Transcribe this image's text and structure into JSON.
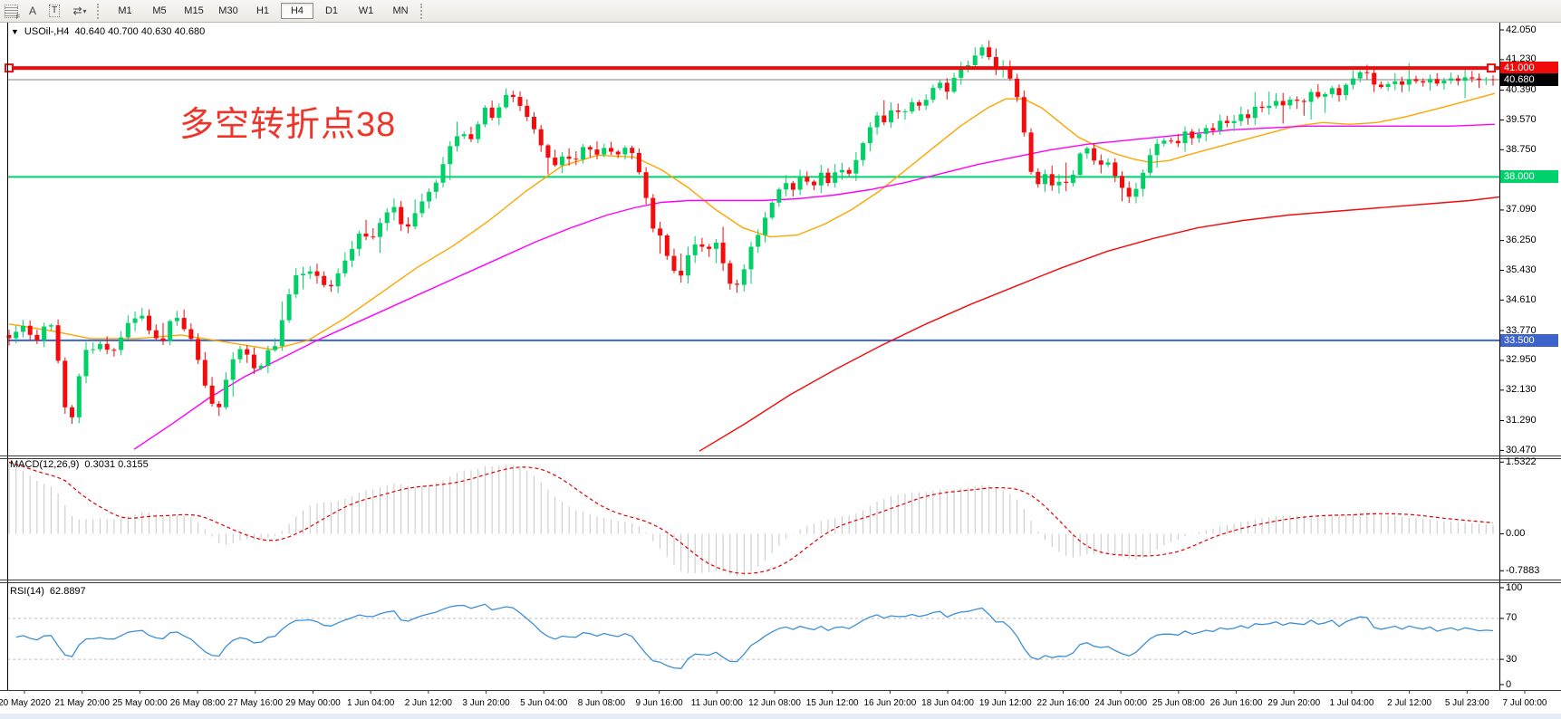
{
  "toolbar": {
    "icons": [
      {
        "name": "fibonacci-icon",
        "sub": "F"
      },
      {
        "name": "text-a-icon",
        "glyph": "A"
      },
      {
        "name": "label-t-icon",
        "glyph": "T"
      },
      {
        "name": "arrows-dropdown-icon",
        "glyph": "⇄",
        "caret": "▾"
      }
    ],
    "timeframes": [
      {
        "label": "M1",
        "active": false
      },
      {
        "label": "M5",
        "active": false
      },
      {
        "label": "M15",
        "active": false
      },
      {
        "label": "M30",
        "active": false
      },
      {
        "label": "H1",
        "active": false
      },
      {
        "label": "H4",
        "active": true
      },
      {
        "label": "D1",
        "active": false
      },
      {
        "label": "W1",
        "active": false
      },
      {
        "label": "MN",
        "active": false
      }
    ]
  },
  "header": {
    "collapse_glyph": "▼",
    "symbol_period": "USOil-,H4",
    "ohlc_text": "40.640 40.700 40.630 40.680"
  },
  "annotation": {
    "text": "多空转折点38",
    "color": "#ee352a"
  },
  "colors": {
    "candle_up": "#00d066",
    "candle_down": "#f40b0b",
    "ma_fast": "#ffa500",
    "ma_mid": "#ff00ff",
    "ma_slow": "#f40b0b",
    "hline_red": "#f10a0a",
    "hline_green": "#00d26b",
    "hline_blue": "#3c64cc",
    "price_line_gray": "#808080",
    "price_tag_black": "#000000",
    "macd_hist": "#c6c6c6",
    "macd_signal": "#e00000",
    "rsi_line": "#3d8fd8",
    "rsi_levels": "#c0c0c0"
  },
  "price_axis": {
    "ticks": [
      "42.050",
      "41.230",
      "40.390",
      "39.570",
      "38.750",
      "37.930",
      "37.090",
      "36.250",
      "35.430",
      "34.610",
      "33.770",
      "32.950",
      "32.130",
      "31.290",
      "30.470"
    ],
    "tick_values": [
      42.05,
      41.23,
      40.39,
      39.57,
      38.75,
      37.93,
      37.09,
      36.25,
      35.43,
      34.61,
      33.77,
      32.95,
      32.13,
      31.29,
      30.47
    ],
    "tags": [
      {
        "label": "41.000",
        "value": 41.0,
        "bg": "#f10a0a"
      },
      {
        "label": "40.680",
        "value": 40.68,
        "bg": "#000000"
      },
      {
        "label": "38.000",
        "value": 38.0,
        "bg": "#00d26b"
      },
      {
        "label": "33.500",
        "value": 33.5,
        "bg": "#3c64cc"
      }
    ]
  },
  "x_axis": {
    "labels": [
      "20 May 2020",
      "21 May 20:00",
      "25 May 00:00",
      "26 May 08:00",
      "27 May 16:00",
      "29 May 00:00",
      "1 Jun 04:00",
      "2 Jun 12:00",
      "3 Jun 20:00",
      "5 Jun 04:00",
      "8 Jun 08:00",
      "9 Jun 16:00",
      "11 Jun 00:00",
      "12 Jun 08:00",
      "15 Jun 12:00",
      "16 Jun 20:00",
      "18 Jun 04:00",
      "19 Jun 12:00",
      "22 Jun 16:00",
      "24 Jun 00:00",
      "25 Jun 08:00",
      "26 Jun 16:00",
      "29 Jun 20:00",
      "1 Jul 04:00",
      "2 Jul 12:00",
      "5 Jul 23:00",
      "7 Jul 00:00"
    ]
  },
  "chart_data": {
    "type": "candlestick",
    "symbol": "USOil-",
    "period": "H4",
    "ohlc_current": {
      "open": 40.64,
      "high": 40.7,
      "low": 40.63,
      "close": 40.68
    },
    "ylim": [
      30.33,
      42.25
    ],
    "levels": [
      {
        "name": "resistance",
        "price": 41.0
      },
      {
        "name": "current-price",
        "price": 40.68
      },
      {
        "name": "pivot",
        "price": 38.0
      },
      {
        "name": "support",
        "price": 33.5
      }
    ],
    "price_keypoints": [
      [
        10,
        33.6
      ],
      [
        25,
        33.9
      ],
      [
        40,
        33.5
      ],
      [
        55,
        34.1
      ],
      [
        62,
        33.3
      ],
      [
        70,
        31.8
      ],
      [
        78,
        31.1
      ],
      [
        85,
        32.3
      ],
      [
        95,
        33.2
      ],
      [
        110,
        33.4
      ],
      [
        125,
        33.2
      ],
      [
        140,
        33.9
      ],
      [
        155,
        34.3
      ],
      [
        168,
        33.6
      ],
      [
        180,
        33.5
      ],
      [
        192,
        34.3
      ],
      [
        202,
        33.9
      ],
      [
        215,
        33.3
      ],
      [
        228,
        32.1
      ],
      [
        240,
        31.5
      ],
      [
        252,
        32.7
      ],
      [
        264,
        33.3
      ],
      [
        274,
        33.1
      ],
      [
        284,
        32.6
      ],
      [
        294,
        33.2
      ],
      [
        304,
        33.4
      ],
      [
        316,
        34.5
      ],
      [
        326,
        35.3
      ],
      [
        340,
        35.4
      ],
      [
        352,
        35.2
      ],
      [
        364,
        34.9
      ],
      [
        374,
        35.4
      ],
      [
        386,
        35.9
      ],
      [
        398,
        36.5
      ],
      [
        410,
        36.3
      ],
      [
        422,
        36.9
      ],
      [
        434,
        37.2
      ],
      [
        446,
        36.5
      ],
      [
        458,
        37.0
      ],
      [
        470,
        37.5
      ],
      [
        482,
        37.9
      ],
      [
        494,
        38.7
      ],
      [
        508,
        39.3
      ],
      [
        520,
        39.0
      ],
      [
        534,
        39.9
      ],
      [
        546,
        39.6
      ],
      [
        558,
        40.3
      ],
      [
        570,
        40.15
      ],
      [
        580,
        39.7
      ],
      [
        592,
        39.2
      ],
      [
        602,
        38.6
      ],
      [
        612,
        38.3
      ],
      [
        622,
        38.65
      ],
      [
        634,
        38.4
      ],
      [
        646,
        38.9
      ],
      [
        656,
        38.6
      ],
      [
        668,
        38.85
      ],
      [
        680,
        38.6
      ],
      [
        692,
        38.9
      ],
      [
        702,
        38.4
      ],
      [
        712,
        37.5
      ],
      [
        720,
        36.6
      ],
      [
        730,
        36.3
      ],
      [
        740,
        35.6
      ],
      [
        750,
        35.2
      ],
      [
        760,
        35.9
      ],
      [
        770,
        36.3
      ],
      [
        780,
        35.9
      ],
      [
        790,
        36.2
      ],
      [
        798,
        35.6
      ],
      [
        808,
        34.9
      ],
      [
        818,
        35.2
      ],
      [
        828,
        36.0
      ],
      [
        840,
        36.6
      ],
      [
        852,
        37.3
      ],
      [
        864,
        37.9
      ],
      [
        874,
        37.6
      ],
      [
        884,
        38.0
      ],
      [
        896,
        37.7
      ],
      [
        906,
        38.1
      ],
      [
        916,
        37.8
      ],
      [
        926,
        38.3
      ],
      [
        936,
        38.0
      ],
      [
        946,
        38.5
      ],
      [
        956,
        39.2
      ],
      [
        966,
        39.7
      ],
      [
        976,
        39.5
      ],
      [
        986,
        39.9
      ],
      [
        996,
        39.7
      ],
      [
        1006,
        40.1
      ],
      [
        1016,
        39.9
      ],
      [
        1026,
        40.3
      ],
      [
        1036,
        40.6
      ],
      [
        1046,
        40.3
      ],
      [
        1056,
        40.9
      ],
      [
        1066,
        41.0
      ],
      [
        1076,
        41.3
      ],
      [
        1086,
        41.6
      ],
      [
        1094,
        41.2
      ],
      [
        1102,
        40.9
      ],
      [
        1110,
        41.1
      ],
      [
        1118,
        40.5
      ],
      [
        1126,
        39.9
      ],
      [
        1132,
        38.9
      ],
      [
        1140,
        37.9
      ],
      [
        1148,
        37.7
      ],
      [
        1156,
        38.2
      ],
      [
        1164,
        37.6
      ],
      [
        1172,
        38.1
      ],
      [
        1180,
        37.6
      ],
      [
        1188,
        38.4
      ],
      [
        1196,
        38.9
      ],
      [
        1204,
        38.6
      ],
      [
        1212,
        38.2
      ],
      [
        1220,
        38.5
      ],
      [
        1228,
        38.2
      ],
      [
        1236,
        37.8
      ],
      [
        1244,
        37.4
      ],
      [
        1252,
        37.6
      ],
      [
        1260,
        38.0
      ],
      [
        1268,
        38.5
      ],
      [
        1278,
        38.9
      ],
      [
        1288,
        39.1
      ],
      [
        1298,
        38.85
      ],
      [
        1308,
        39.2
      ],
      [
        1318,
        39.0
      ],
      [
        1328,
        39.4
      ],
      [
        1338,
        39.2
      ],
      [
        1348,
        39.6
      ],
      [
        1358,
        39.4
      ],
      [
        1368,
        39.8
      ],
      [
        1378,
        39.6
      ],
      [
        1388,
        40.0
      ],
      [
        1398,
        39.85
      ],
      [
        1408,
        40.1
      ],
      [
        1418,
        39.95
      ],
      [
        1428,
        40.2
      ],
      [
        1438,
        40.05
      ],
      [
        1448,
        40.35
      ],
      [
        1458,
        40.15
      ],
      [
        1468,
        40.45
      ],
      [
        1478,
        40.3
      ],
      [
        1488,
        40.55
      ],
      [
        1498,
        40.8
      ],
      [
        1508,
        40.95
      ],
      [
        1516,
        40.6
      ],
      [
        1526,
        40.45
      ],
      [
        1536,
        40.65
      ],
      [
        1546,
        40.55
      ],
      [
        1556,
        40.75
      ],
      [
        1566,
        40.6
      ],
      [
        1576,
        40.7
      ],
      [
        1586,
        40.62
      ],
      [
        1596,
        40.72
      ],
      [
        1606,
        40.62
      ],
      [
        1616,
        40.7
      ],
      [
        1626,
        40.66
      ],
      [
        1636,
        40.72
      ],
      [
        1648,
        40.68
      ]
    ],
    "ma_lines": [
      {
        "name": "ma-fast-orange",
        "points": [
          [
            10,
            33.95
          ],
          [
            60,
            33.75
          ],
          [
            100,
            33.55
          ],
          [
            150,
            33.55
          ],
          [
            200,
            33.65
          ],
          [
            250,
            33.45
          ],
          [
            300,
            33.25
          ],
          [
            340,
            33.5
          ],
          [
            380,
            34.1
          ],
          [
            420,
            34.8
          ],
          [
            460,
            35.5
          ],
          [
            500,
            36.1
          ],
          [
            540,
            36.8
          ],
          [
            580,
            37.6
          ],
          [
            620,
            38.3
          ],
          [
            660,
            38.6
          ],
          [
            700,
            38.55
          ],
          [
            730,
            38.2
          ],
          [
            760,
            37.7
          ],
          [
            790,
            37.1
          ],
          [
            820,
            36.6
          ],
          [
            850,
            36.35
          ],
          [
            880,
            36.4
          ],
          [
            910,
            36.7
          ],
          [
            940,
            37.1
          ],
          [
            970,
            37.6
          ],
          [
            1000,
            38.2
          ],
          [
            1030,
            38.8
          ],
          [
            1060,
            39.4
          ],
          [
            1090,
            39.9
          ],
          [
            1110,
            40.15
          ],
          [
            1130,
            40.15
          ],
          [
            1150,
            39.9
          ],
          [
            1170,
            39.5
          ],
          [
            1190,
            39.1
          ],
          [
            1210,
            38.85
          ],
          [
            1230,
            38.65
          ],
          [
            1250,
            38.5
          ],
          [
            1270,
            38.4
          ],
          [
            1290,
            38.45
          ],
          [
            1310,
            38.6
          ],
          [
            1340,
            38.8
          ],
          [
            1370,
            39.0
          ],
          [
            1400,
            39.2
          ],
          [
            1430,
            39.4
          ],
          [
            1460,
            39.5
          ],
          [
            1490,
            39.45
          ],
          [
            1520,
            39.5
          ],
          [
            1550,
            39.65
          ],
          [
            1590,
            39.9
          ],
          [
            1620,
            40.1
          ],
          [
            1650,
            40.3
          ]
        ]
      },
      {
        "name": "ma-mid-magenta",
        "points": [
          [
            148,
            30.5
          ],
          [
            190,
            31.2
          ],
          [
            230,
            31.9
          ],
          [
            270,
            32.5
          ],
          [
            310,
            33.0
          ],
          [
            350,
            33.5
          ],
          [
            390,
            33.95
          ],
          [
            430,
            34.4
          ],
          [
            470,
            34.85
          ],
          [
            510,
            35.3
          ],
          [
            550,
            35.75
          ],
          [
            590,
            36.2
          ],
          [
            630,
            36.6
          ],
          [
            670,
            36.95
          ],
          [
            700,
            37.15
          ],
          [
            730,
            37.3
          ],
          [
            760,
            37.35
          ],
          [
            800,
            37.35
          ],
          [
            840,
            37.35
          ],
          [
            880,
            37.4
          ],
          [
            920,
            37.5
          ],
          [
            960,
            37.65
          ],
          [
            1000,
            37.85
          ],
          [
            1040,
            38.1
          ],
          [
            1080,
            38.35
          ],
          [
            1120,
            38.55
          ],
          [
            1160,
            38.75
          ],
          [
            1200,
            38.9
          ],
          [
            1240,
            39.0
          ],
          [
            1280,
            39.1
          ],
          [
            1320,
            39.2
          ],
          [
            1360,
            39.3
          ],
          [
            1400,
            39.35
          ],
          [
            1440,
            39.4
          ],
          [
            1480,
            39.4
          ],
          [
            1520,
            39.4
          ],
          [
            1560,
            39.4
          ],
          [
            1600,
            39.4
          ],
          [
            1650,
            39.45
          ]
        ]
      },
      {
        "name": "ma-slow-red",
        "points": [
          [
            772,
            30.45
          ],
          [
            822,
            31.2
          ],
          [
            872,
            32.0
          ],
          [
            922,
            32.7
          ],
          [
            972,
            33.35
          ],
          [
            1022,
            33.95
          ],
          [
            1072,
            34.5
          ],
          [
            1122,
            35.0
          ],
          [
            1172,
            35.5
          ],
          [
            1222,
            35.95
          ],
          [
            1272,
            36.3
          ],
          [
            1322,
            36.6
          ],
          [
            1372,
            36.8
          ],
          [
            1422,
            36.95
          ],
          [
            1472,
            37.05
          ],
          [
            1522,
            37.15
          ],
          [
            1572,
            37.25
          ],
          [
            1622,
            37.35
          ],
          [
            1655,
            37.45
          ]
        ]
      }
    ],
    "macd": {
      "label": "MACD(12,26,9)",
      "values": "0.3031 0.3155",
      "params": [
        12,
        26,
        9
      ],
      "axis_labels": [
        "1.5322",
        "0.00",
        "-0.7883"
      ],
      "axis_values": [
        1.5322,
        0.0,
        -0.7883
      ]
    },
    "rsi": {
      "label": "RSI(14)",
      "value": "62.8897",
      "period": 14,
      "axis_labels": [
        "100",
        "70",
        "30",
        "0"
      ],
      "axis_values": [
        100,
        70,
        30,
        0
      ],
      "levels": [
        70,
        30
      ]
    }
  }
}
